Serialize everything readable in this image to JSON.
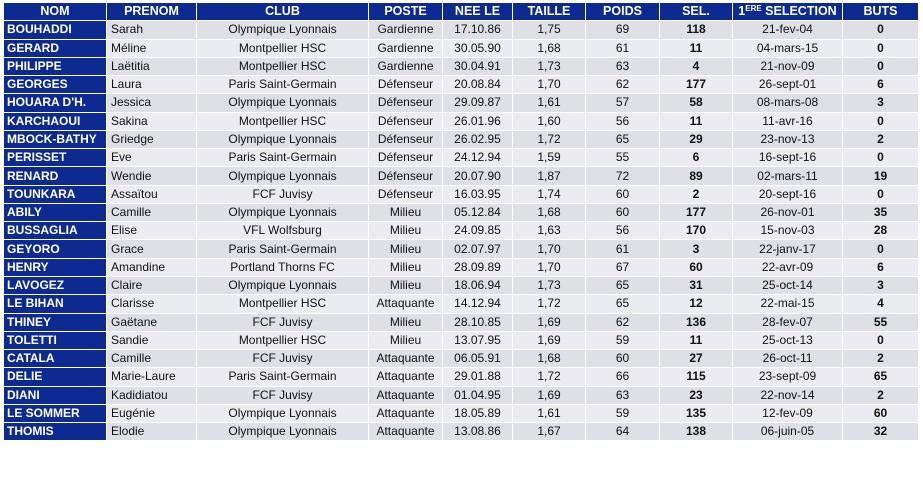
{
  "headers": {
    "nom": "NOM",
    "prenom": "PRENOM",
    "club": "CLUB",
    "poste": "POSTE",
    "nee_le": "NEE LE",
    "taille": "TAILLE",
    "poids": "POIDS",
    "sel": "SEL.",
    "first_sel_num": "1",
    "first_sel_sup": "ERE",
    "first_sel_rest": " SELECTION",
    "buts": "BUTS"
  },
  "rows": [
    {
      "nom": "BOUHADDI",
      "prenom": "Sarah",
      "club": "Olympique Lyonnais",
      "poste": "Gardienne",
      "nee_le": "17.10.86",
      "taille": "1,75",
      "poids": "69",
      "sel": "118",
      "first_sel": "21-fev-04",
      "buts": "0"
    },
    {
      "nom": "GERARD",
      "prenom": "Méline",
      "club": "Montpellier HSC",
      "poste": "Gardienne",
      "nee_le": "30.05.90",
      "taille": "1,68",
      "poids": "61",
      "sel": "11",
      "first_sel": "04-mars-15",
      "buts": "0"
    },
    {
      "nom": "PHILIPPE",
      "prenom": "Laëtitia",
      "club": "Montpellier HSC",
      "poste": "Gardienne",
      "nee_le": "30.04.91",
      "taille": "1,73",
      "poids": "63",
      "sel": "4",
      "first_sel": "21-nov-09",
      "buts": "0"
    },
    {
      "nom": "GEORGES",
      "prenom": "Laura",
      "club": "Paris Saint-Germain",
      "poste": "Défenseur",
      "nee_le": "20.08.84",
      "taille": "1,70",
      "poids": "62",
      "sel": "177",
      "first_sel": "26-sept-01",
      "buts": "6"
    },
    {
      "nom": "HOUARA D'H.",
      "prenom": "Jessica",
      "club": "Olympique Lyonnais",
      "poste": "Défenseur",
      "nee_le": "29.09.87",
      "taille": "1,61",
      "poids": "57",
      "sel": "58",
      "first_sel": "08-mars-08",
      "buts": "3"
    },
    {
      "nom": "KARCHAOUI",
      "prenom": "Sakina",
      "club": "Montpellier HSC",
      "poste": "Défenseur",
      "nee_le": "26.01.96",
      "taille": "1,60",
      "poids": "56",
      "sel": "11",
      "first_sel": "11-avr-16",
      "buts": "0"
    },
    {
      "nom": "MBOCK-BATHY",
      "prenom": "Griedge",
      "club": "Olympique Lyonnais",
      "poste": "Défenseur",
      "nee_le": "26.02.95",
      "taille": "1,72",
      "poids": "65",
      "sel": "29",
      "first_sel": "23-nov-13",
      "buts": "2"
    },
    {
      "nom": "PERISSET",
      "prenom": "Eve",
      "club": "Paris Saint-Germain",
      "poste": "Défenseur",
      "nee_le": "24.12.94",
      "taille": "1,59",
      "poids": "55",
      "sel": "6",
      "first_sel": "16-sept-16",
      "buts": "0"
    },
    {
      "nom": "RENARD",
      "prenom": "Wendie",
      "club": "Olympique Lyonnais",
      "poste": "Défenseur",
      "nee_le": "20.07.90",
      "taille": "1,87",
      "poids": "72",
      "sel": "89",
      "first_sel": "02-mars-11",
      "buts": "19"
    },
    {
      "nom": "TOUNKARA",
      "prenom": "Assaïtou",
      "club": "FCF Juvisy",
      "poste": "Défenseur",
      "nee_le": "16.03.95",
      "taille": "1,74",
      "poids": "60",
      "sel": "2",
      "first_sel": "20-sept-16",
      "buts": "0"
    },
    {
      "nom": "ABILY",
      "prenom": "Camille",
      "club": "Olympique Lyonnais",
      "poste": "Milieu",
      "nee_le": "05.12.84",
      "taille": "1,68",
      "poids": "60",
      "sel": "177",
      "first_sel": "26-nov-01",
      "buts": "35"
    },
    {
      "nom": "BUSSAGLIA",
      "prenom": "Elise",
      "club": "VFL Wolfsburg",
      "poste": "Milieu",
      "nee_le": "24.09.85",
      "taille": "1,63",
      "poids": "56",
      "sel": "170",
      "first_sel": "15-nov-03",
      "buts": "28"
    },
    {
      "nom": "GEYORO",
      "prenom": "Grace",
      "club": "Paris Saint-Germain",
      "poste": "Milieu",
      "nee_le": "02.07.97",
      "taille": "1,70",
      "poids": "61",
      "sel": "3",
      "first_sel": "22-janv-17",
      "buts": "0"
    },
    {
      "nom": "HENRY",
      "prenom": "Amandine",
      "club": "Portland Thorns FC",
      "poste": "Milieu",
      "nee_le": "28.09.89",
      "taille": "1,70",
      "poids": "67",
      "sel": "60",
      "first_sel": "22-avr-09",
      "buts": "6"
    },
    {
      "nom": "LAVOGEZ",
      "prenom": "Claire",
      "club": "Olympique Lyonnais",
      "poste": "Milieu",
      "nee_le": "18.06.94",
      "taille": "1,73",
      "poids": "65",
      "sel": "31",
      "first_sel": "25-oct-14",
      "buts": "3"
    },
    {
      "nom": "LE BIHAN",
      "prenom": "Clarisse",
      "club": "Montpellier HSC",
      "poste": "Attaquante",
      "nee_le": "14.12.94",
      "taille": "1,72",
      "poids": "65",
      "sel": "12",
      "first_sel": "22-mai-15",
      "buts": "4"
    },
    {
      "nom": "THINEY",
      "prenom": "Gaëtane",
      "club": "FCF Juvisy",
      "poste": "Milieu",
      "nee_le": "28.10.85",
      "taille": "1,69",
      "poids": "62",
      "sel": "136",
      "first_sel": "28-fev-07",
      "buts": "55"
    },
    {
      "nom": "TOLETTI",
      "prenom": "Sandie",
      "club": "Montpellier HSC",
      "poste": "Milieu",
      "nee_le": "13.07.95",
      "taille": "1,69",
      "poids": "59",
      "sel": "11",
      "first_sel": "25-oct-13",
      "buts": "0"
    },
    {
      "nom": "CATALA",
      "prenom": "Camille",
      "club": "FCF Juvisy",
      "poste": "Attaquante",
      "nee_le": "06.05.91",
      "taille": "1,68",
      "poids": "60",
      "sel": "27",
      "first_sel": "26-oct-11",
      "buts": "2"
    },
    {
      "nom": "DELIE",
      "prenom": "Marie-Laure",
      "club": "Paris Saint-Germain",
      "poste": "Attaquante",
      "nee_le": "29.01.88",
      "taille": "1,72",
      "poids": "66",
      "sel": "115",
      "first_sel": "23-sept-09",
      "buts": "65"
    },
    {
      "nom": "DIANI",
      "prenom": "Kadidiatou",
      "club": "FCF Juvisy",
      "poste": "Attaquante",
      "nee_le": "01.04.95",
      "taille": "1,69",
      "poids": "63",
      "sel": "23",
      "first_sel": "22-nov-14",
      "buts": "2"
    },
    {
      "nom": "LE SOMMER",
      "prenom": "Eugénie",
      "club": "Olympique Lyonnais",
      "poste": "Attaquante",
      "nee_le": "18.05.89",
      "taille": "1,61",
      "poids": "59",
      "sel": "135",
      "first_sel": "12-fev-09",
      "buts": "60"
    },
    {
      "nom": "THOMIS",
      "prenom": "Elodie",
      "club": "Olympique Lyonnais",
      "poste": "Attaquante",
      "nee_le": "13.08.86",
      "taille": "1,67",
      "poids": "64",
      "sel": "138",
      "first_sel": "06-juin-05",
      "buts": "32"
    }
  ]
}
